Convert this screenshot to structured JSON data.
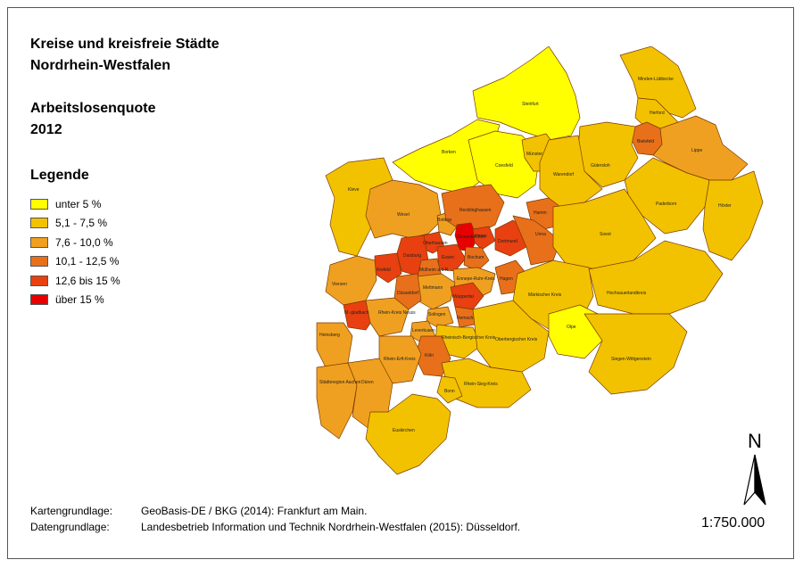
{
  "title": {
    "line1": "Kreise und kreisfreie Städte",
    "line2": "Nordrhein-Westfalen"
  },
  "subtitle": {
    "line1": "Arbeitslosenquote",
    "line2": "2012"
  },
  "legend": {
    "title": "Legende",
    "items": [
      {
        "label": "unter 5 %",
        "color": "#ffff00"
      },
      {
        "label": "5,1 - 7,5 %",
        "color": "#f2c200"
      },
      {
        "label": "7,6 - 10,0 %",
        "color": "#f0a020"
      },
      {
        "label": "10,1 - 12,5 %",
        "color": "#e8701a"
      },
      {
        "label": "12,6 bis 15 %",
        "color": "#e84010"
      },
      {
        "label": "über 15 %",
        "color": "#e80000"
      }
    ]
  },
  "credits": {
    "base_label": "Kartengrundlage:",
    "base_value": "GeoBasis-DE / BKG (2014): Frankfurt am Main.",
    "data_label": "Datengrundlage:",
    "data_value": "Landesbetrieb Information und Technik Nordrhein-Westfalen (2015): Düsseldorf."
  },
  "north_label": "N",
  "scale": "1:750.000",
  "districts": [
    {
      "name": "Minden-Lübbecke",
      "class": 1
    },
    {
      "name": "Herford",
      "class": 1
    },
    {
      "name": "Steinfurt",
      "class": 0
    },
    {
      "name": "Bielefeld",
      "class": 3
    },
    {
      "name": "Lippe",
      "class": 2
    },
    {
      "name": "Borken",
      "class": 0
    },
    {
      "name": "Coesfeld",
      "class": 0
    },
    {
      "name": "Münster",
      "class": 1
    },
    {
      "name": "Gütersloh",
      "class": 1
    },
    {
      "name": "Warendorf",
      "class": 1
    },
    {
      "name": "Kleve",
      "class": 1
    },
    {
      "name": "Paderborn",
      "class": 1
    },
    {
      "name": "Höxter",
      "class": 1
    },
    {
      "name": "Wesel",
      "class": 2
    },
    {
      "name": "Bottrop",
      "class": 2
    },
    {
      "name": "Recklinghausen",
      "class": 3
    },
    {
      "name": "Hamm",
      "class": 3
    },
    {
      "name": "Gelsenkirchen",
      "class": 5
    },
    {
      "name": "Herne",
      "class": 4
    },
    {
      "name": "Dortmund",
      "class": 4
    },
    {
      "name": "Unna",
      "class": 3
    },
    {
      "name": "Soest",
      "class": 1
    },
    {
      "name": "Oberhausen",
      "class": 4
    },
    {
      "name": "Duisburg",
      "class": 4
    },
    {
      "name": "Essen",
      "class": 4
    },
    {
      "name": "Bochum",
      "class": 3
    },
    {
      "name": "Mülheim a.d.R.",
      "class": 3
    },
    {
      "name": "Ennepe-Ruhr-Kreis",
      "class": 2
    },
    {
      "name": "Hagen",
      "class": 3
    },
    {
      "name": "Krefeld",
      "class": 4
    },
    {
      "name": "Mettmann",
      "class": 2
    },
    {
      "name": "Viersen",
      "class": 2
    },
    {
      "name": "Düsseldorf",
      "class": 3
    },
    {
      "name": "Wuppertal",
      "class": 4
    },
    {
      "name": "Märkischer Kreis",
      "class": 1
    },
    {
      "name": "Hochsauerlandkreis",
      "class": 1
    },
    {
      "name": "M.-gladbach",
      "class": 4
    },
    {
      "name": "Rhein-Kreis Neuss",
      "class": 2
    },
    {
      "name": "Solingen",
      "class": 2
    },
    {
      "name": "Remsch.",
      "class": 3
    },
    {
      "name": "Olpe",
      "class": 0
    },
    {
      "name": "Leverkusen",
      "class": 2
    },
    {
      "name": "Rheinisch-Bergischer Kreis",
      "class": 1
    },
    {
      "name": "Heinsberg",
      "class": 2
    },
    {
      "name": "Oberbergischer Kreis",
      "class": 1
    },
    {
      "name": "Köln",
      "class": 3
    },
    {
      "name": "Rhein-Erft-Kreis",
      "class": 2
    },
    {
      "name": "Siegen-Wittgenstein",
      "class": 1
    },
    {
      "name": "Städteregion Aachen",
      "class": 2
    },
    {
      "name": "Düren",
      "class": 2
    },
    {
      "name": "Rhein-Sieg-Kreis",
      "class": 1
    },
    {
      "name": "Bonn",
      "class": 1
    },
    {
      "name": "Euskirchen",
      "class": 1
    }
  ]
}
